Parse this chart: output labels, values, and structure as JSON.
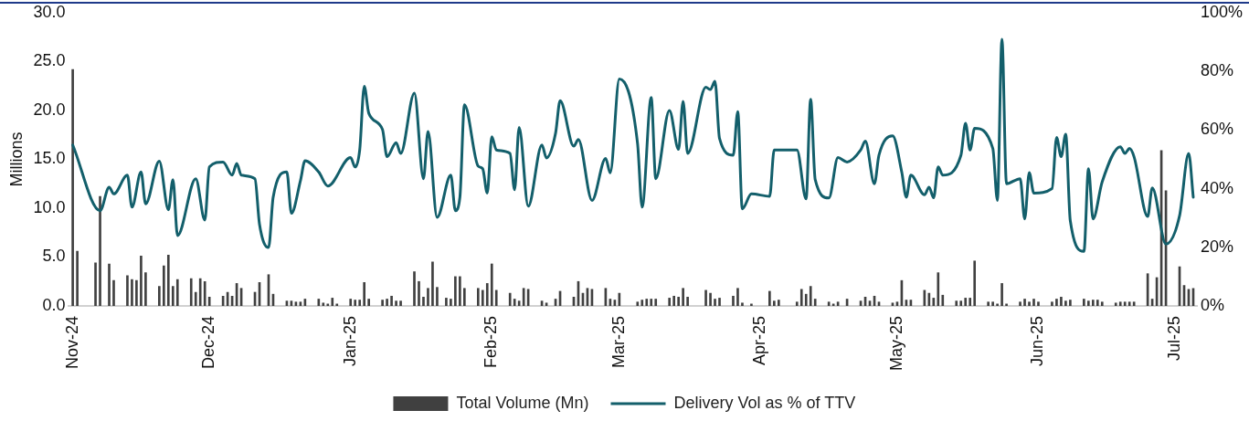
{
  "chart_data": {
    "type": "bar",
    "ylabel": "Millions",
    "legend": "bottom",
    "marker": "none",
    "grid": false,
    "xlim": [
      "2024-10-31",
      "2025-07-06"
    ],
    "xticks": [
      {
        "value": "2024-11-01",
        "label": "Nov-24"
      },
      {
        "value": "2024-12-01",
        "label": "Dec-24"
      },
      {
        "value": "2025-01-01",
        "label": "Jan-25"
      },
      {
        "value": "2025-02-01",
        "label": "Feb-25"
      },
      {
        "value": "2025-03-01",
        "label": "Mar-25"
      },
      {
        "value": "2025-04-01",
        "label": "Apr-25"
      },
      {
        "value": "2025-05-01",
        "label": "May-25"
      },
      {
        "value": "2025-06-01",
        "label": "Jun-25"
      },
      {
        "value": "2025-07-01",
        "label": "Jul-25"
      }
    ],
    "ylim": [
      0,
      30
    ],
    "yticks": [
      {
        "value": 0,
        "label": "0.0"
      },
      {
        "value": 5,
        "label": "5.0"
      },
      {
        "value": 10,
        "label": "10.0"
      },
      {
        "value": 15,
        "label": "15.0"
      },
      {
        "value": 20,
        "label": "20.0"
      },
      {
        "value": 25,
        "label": "25.0"
      },
      {
        "value": 30,
        "label": "30.0"
      }
    ],
    "y2lim": [
      0,
      100
    ],
    "y2ticks": [
      {
        "value": 0,
        "label": "0%"
      },
      {
        "value": 20,
        "label": "20%"
      },
      {
        "value": 40,
        "label": "40%"
      },
      {
        "value": 60,
        "label": "60%"
      },
      {
        "value": 80,
        "label": "80%"
      },
      {
        "value": 100,
        "label": "100%"
      }
    ],
    "series": [
      {
        "name": "Total Volume (Mn)",
        "color": "#404040",
        "x": [
          "2024-11-01",
          "2024-11-02",
          "2024-11-06",
          "2024-11-07",
          "2024-11-09",
          "2024-11-10",
          "2024-11-13",
          "2024-11-14",
          "2024-11-15",
          "2024-11-16",
          "2024-11-17",
          "2024-11-20",
          "2024-11-21",
          "2024-11-22",
          "2024-11-23",
          "2024-11-24",
          "2024-11-27",
          "2024-11-28",
          "2024-11-29",
          "2024-11-30",
          "2024-12-01",
          "2024-12-04",
          "2024-12-05",
          "2024-12-06",
          "2024-12-07",
          "2024-12-08",
          "2024-12-11",
          "2024-12-12",
          "2024-12-14",
          "2024-12-15",
          "2024-12-18",
          "2024-12-19",
          "2024-12-20",
          "2024-12-21",
          "2024-12-22",
          "2024-12-25",
          "2024-12-26",
          "2024-12-27",
          "2024-12-28",
          "2024-12-29",
          "2025-01-01",
          "2025-01-02",
          "2025-01-03",
          "2025-01-04",
          "2025-01-05",
          "2025-01-08",
          "2025-01-09",
          "2025-01-10",
          "2025-01-11",
          "2025-01-12",
          "2025-01-15",
          "2025-01-16",
          "2025-01-17",
          "2025-01-18",
          "2025-01-19",
          "2025-01-20",
          "2025-01-22",
          "2025-01-23",
          "2025-01-24",
          "2025-01-25",
          "2025-01-26",
          "2025-01-29",
          "2025-01-30",
          "2025-01-31",
          "2025-02-01",
          "2025-02-02",
          "2025-02-05",
          "2025-02-06",
          "2025-02-07",
          "2025-02-08",
          "2025-02-09",
          "2025-02-12",
          "2025-02-13",
          "2025-02-15",
          "2025-02-16",
          "2025-02-19",
          "2025-02-20",
          "2025-02-21",
          "2025-02-22",
          "2025-02-23",
          "2025-02-26",
          "2025-02-27",
          "2025-02-28",
          "2025-03-01",
          "2025-03-05",
          "2025-03-06",
          "2025-03-07",
          "2025-03-08",
          "2025-03-09",
          "2025-03-12",
          "2025-03-13",
          "2025-03-14",
          "2025-03-15",
          "2025-03-16",
          "2025-03-20",
          "2025-03-21",
          "2025-03-22",
          "2025-03-23",
          "2025-03-26",
          "2025-03-27",
          "2025-03-28",
          "2025-03-30",
          "2025-04-03",
          "2025-04-04",
          "2025-04-05",
          "2025-04-09",
          "2025-04-10",
          "2025-04-11",
          "2025-04-12",
          "2025-04-13",
          "2025-04-16",
          "2025-04-17",
          "2025-04-18",
          "2025-04-20",
          "2025-04-23",
          "2025-04-24",
          "2025-04-25",
          "2025-04-26",
          "2025-04-27",
          "2025-04-30",
          "2025-05-01",
          "2025-05-02",
          "2025-05-03",
          "2025-05-04",
          "2025-05-07",
          "2025-05-08",
          "2025-05-09",
          "2025-05-10",
          "2025-05-11",
          "2025-05-14",
          "2025-05-15",
          "2025-05-16",
          "2025-05-17",
          "2025-05-18",
          "2025-05-21",
          "2025-05-22",
          "2025-05-23",
          "2025-05-24",
          "2025-05-25",
          "2025-05-28",
          "2025-05-29",
          "2025-05-30",
          "2025-05-31",
          "2025-06-01",
          "2025-06-04",
          "2025-06-05",
          "2025-06-06",
          "2025-06-07",
          "2025-06-08",
          "2025-06-11",
          "2025-06-12",
          "2025-06-13",
          "2025-06-14",
          "2025-06-15",
          "2025-06-18",
          "2025-06-19",
          "2025-06-20",
          "2025-06-21",
          "2025-06-22",
          "2025-06-25",
          "2025-06-26",
          "2025-06-27",
          "2025-06-28",
          "2025-06-29",
          "2025-07-02",
          "2025-07-03",
          "2025-07-04",
          "2025-07-05"
        ],
        "values": [
          24.2,
          5.6,
          4.4,
          11.2,
          4.3,
          2.6,
          3.1,
          2.7,
          2.6,
          5.1,
          3.4,
          2.0,
          4.1,
          5.2,
          2.0,
          2.7,
          2.8,
          1.4,
          2.8,
          2.5,
          0.9,
          1.0,
          1.4,
          1.0,
          2.3,
          1.8,
          1.4,
          2.4,
          3.2,
          1.2,
          0.5,
          0.5,
          0.4,
          0.4,
          0.7,
          0.7,
          0.3,
          0.2,
          0.8,
          0.2,
          0.7,
          0.6,
          0.6,
          2.4,
          0.7,
          0.6,
          0.7,
          1.0,
          0.5,
          0.5,
          3.5,
          2.5,
          0.9,
          1.8,
          4.5,
          1.9,
          0.8,
          0.7,
          3.0,
          3.0,
          1.8,
          1.8,
          1.6,
          2.3,
          4.3,
          1.6,
          1.3,
          0.7,
          0.5,
          1.8,
          1.7,
          0.5,
          0.3,
          0.7,
          1.5,
          0.9,
          2.5,
          1.3,
          1.8,
          1.7,
          1.8,
          0.7,
          0.6,
          1.3,
          0.4,
          0.6,
          0.7,
          0.7,
          0.7,
          0.8,
          1.0,
          0.9,
          1.8,
          0.9,
          1.6,
          1.3,
          0.7,
          0.8,
          1.0,
          1.8,
          0.3,
          0.2,
          1.5,
          0.5,
          0.6,
          0.4,
          1.7,
          1.2,
          2.0,
          0.7,
          0.4,
          0.2,
          0.4,
          0.7,
          0.5,
          0.9,
          0.5,
          1.0,
          0.4,
          0.3,
          0.4,
          2.6,
          0.6,
          0.6,
          1.6,
          1.3,
          0.8,
          3.4,
          1.1,
          0.5,
          0.5,
          0.8,
          0.8,
          4.6,
          0.4,
          0.4,
          0.2,
          2.3,
          0.2,
          0.4,
          0.7,
          0.4,
          0.7,
          0.4,
          0.4,
          0.7,
          0.9,
          0.5,
          0.6,
          0.7,
          0.5,
          0.6,
          0.6,
          0.4,
          0.3,
          0.4,
          0.4,
          0.4,
          0.4,
          3.3,
          0.7,
          2.9,
          15.9,
          11.8,
          4.0,
          2.1,
          1.7,
          1.8
        ]
      },
      {
        "name": "Delivery Vol as % of TTV",
        "type": "line",
        "axis": "y2",
        "color": "#135f6b",
        "line_style": "solid",
        "x": [
          "2024-11-01",
          "2024-11-07",
          "2024-11-09",
          "2024-11-10",
          "2024-11-13",
          "2024-11-14",
          "2024-11-16",
          "2024-11-17",
          "2024-11-20",
          "2024-11-22",
          "2024-11-23",
          "2024-11-24",
          "2024-11-28",
          "2024-11-30",
          "2024-12-01",
          "2024-12-04",
          "2024-12-06",
          "2024-12-07",
          "2024-12-08",
          "2024-12-11",
          "2024-12-12",
          "2024-12-14",
          "2024-12-15",
          "2024-12-18",
          "2024-12-19",
          "2024-12-21",
          "2024-12-22",
          "2024-12-25",
          "2024-12-27",
          "2025-01-01",
          "2025-01-02",
          "2025-01-03",
          "2025-01-04",
          "2025-01-05",
          "2025-01-08",
          "2025-01-09",
          "2025-01-11",
          "2025-01-12",
          "2025-01-15",
          "2025-01-17",
          "2025-01-18",
          "2025-01-20",
          "2025-01-23",
          "2025-01-24",
          "2025-01-25",
          "2025-01-26",
          "2025-01-29",
          "2025-01-30",
          "2025-01-31",
          "2025-02-01",
          "2025-02-02",
          "2025-02-05",
          "2025-02-06",
          "2025-02-07",
          "2025-02-09",
          "2025-02-12",
          "2025-02-13",
          "2025-02-15",
          "2025-02-16",
          "2025-02-19",
          "2025-02-20",
          "2025-02-23",
          "2025-02-26",
          "2025-02-27",
          "2025-03-01",
          "2025-03-05",
          "2025-03-06",
          "2025-03-08",
          "2025-03-09",
          "2025-03-12",
          "2025-03-14",
          "2025-03-15",
          "2025-03-16",
          "2025-03-20",
          "2025-03-21",
          "2025-03-22",
          "2025-03-23",
          "2025-03-26",
          "2025-03-27",
          "2025-03-28",
          "2025-03-30",
          "2025-04-03",
          "2025-04-04",
          "2025-04-09",
          "2025-04-11",
          "2025-04-12",
          "2025-04-13",
          "2025-04-16",
          "2025-04-18",
          "2025-04-20",
          "2025-04-23",
          "2025-04-24",
          "2025-04-26",
          "2025-04-27",
          "2025-04-30",
          "2025-05-02",
          "2025-05-03",
          "2025-05-04",
          "2025-05-07",
          "2025-05-08",
          "2025-05-09",
          "2025-05-10",
          "2025-05-11",
          "2025-05-15",
          "2025-05-16",
          "2025-05-17",
          "2025-05-18",
          "2025-05-22",
          "2025-05-23",
          "2025-05-24",
          "2025-05-25",
          "2025-05-28",
          "2025-05-29",
          "2025-05-30",
          "2025-05-31",
          "2025-06-04",
          "2025-06-05",
          "2025-06-06",
          "2025-06-07",
          "2025-06-08",
          "2025-06-11",
          "2025-06-12",
          "2025-06-13",
          "2025-06-15",
          "2025-06-19",
          "2025-06-20",
          "2025-06-21",
          "2025-06-22",
          "2025-06-25",
          "2025-06-26",
          "2025-06-29",
          "2025-07-02",
          "2025-07-04",
          "2025-07-05"
        ],
        "values": [
          54.9,
          32.5,
          40.5,
          38.2,
          44.6,
          33.7,
          45.7,
          34.8,
          49.4,
          32.8,
          43.1,
          24.0,
          43.4,
          29.3,
          47.4,
          49.1,
          44.6,
          48.6,
          44.6,
          43.4,
          27.9,
          19.9,
          37.1,
          45.7,
          31.6,
          42.8,
          49.5,
          45.7,
          40.9,
          50.6,
          47.4,
          53.2,
          74.9,
          65.7,
          60.2,
          50.9,
          55.7,
          52.0,
          72.6,
          43.4,
          59.5,
          30.2,
          44.6,
          32.5,
          37.1,
          68.6,
          47.7,
          46.8,
          38.5,
          57.7,
          53.2,
          52.0,
          39.6,
          60.9,
          34.0,
          54.9,
          50.5,
          58.9,
          70.0,
          54.5,
          56.8,
          36.0,
          50.3,
          45.4,
          77.4,
          55.4,
          33.7,
          71.1,
          43.4,
          66.7,
          53.4,
          69.8,
          52.0,
          74.6,
          73.8,
          76.6,
          57.1,
          51.4,
          66.3,
          33.1,
          38.2,
          37.4,
          53.2,
          53.2,
          36.5,
          70.5,
          43.1,
          36.8,
          50.6,
          49.1,
          53.2,
          56.2,
          41.7,
          51.4,
          58.0,
          45.7,
          37.1,
          44.6,
          37.9,
          40.5,
          36.9,
          47.4,
          44.6,
          51.4,
          62.3,
          53.2,
          60.6,
          53.7,
          36.0,
          91.0,
          41.7,
          43.4,
          29.7,
          45.5,
          38.5,
          40.0,
          57.5,
          50.9,
          58.6,
          29.1,
          18.6,
          46.8,
          29.7,
          42.3,
          54.3,
          52.0,
          53.7,
          50.9,
          30.5,
          40.3,
          21.1,
          30.8,
          52.0,
          37.1
        ]
      }
    ]
  }
}
